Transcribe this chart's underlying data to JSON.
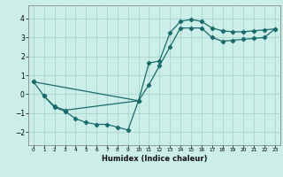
{
  "background_color": "#cceee8",
  "grid_color": "#aad4ce",
  "line_color": "#1a6b6b",
  "xlabel": "Humidex (Indice chaleur)",
  "xlim": [
    -0.5,
    23.5
  ],
  "ylim": [
    -2.7,
    4.7
  ],
  "xticks": [
    0,
    1,
    2,
    3,
    4,
    5,
    6,
    7,
    8,
    9,
    10,
    11,
    12,
    13,
    14,
    15,
    16,
    17,
    18,
    19,
    20,
    21,
    22,
    23
  ],
  "yticks": [
    -2,
    -1,
    0,
    1,
    2,
    3,
    4
  ],
  "line1_x": [
    0,
    1,
    2,
    3,
    10,
    11,
    12,
    13,
    14,
    15,
    16,
    17,
    18,
    19,
    20,
    21,
    22,
    23
  ],
  "line1_y": [
    0.65,
    -0.1,
    -0.65,
    -0.85,
    -0.35,
    1.65,
    1.75,
    3.25,
    3.85,
    3.95,
    3.85,
    3.5,
    3.35,
    3.3,
    3.3,
    3.35,
    3.4,
    3.45
  ],
  "line2_x": [
    1,
    2,
    3,
    4,
    5,
    6,
    7,
    8,
    9,
    10
  ],
  "line2_y": [
    -0.1,
    -0.7,
    -0.9,
    -1.3,
    -1.5,
    -1.6,
    -1.6,
    -1.75,
    -1.9,
    -0.35
  ],
  "line3_x": [
    0,
    10,
    11,
    12,
    13,
    14,
    15,
    16,
    17,
    18,
    19,
    20,
    21,
    22,
    23
  ],
  "line3_y": [
    0.65,
    -0.35,
    0.5,
    1.5,
    2.5,
    3.5,
    3.5,
    3.5,
    3.0,
    2.8,
    2.85,
    2.9,
    2.95,
    3.0,
    3.45
  ],
  "marker": "D",
  "markersize": 2.2,
  "linewidth": 0.9
}
